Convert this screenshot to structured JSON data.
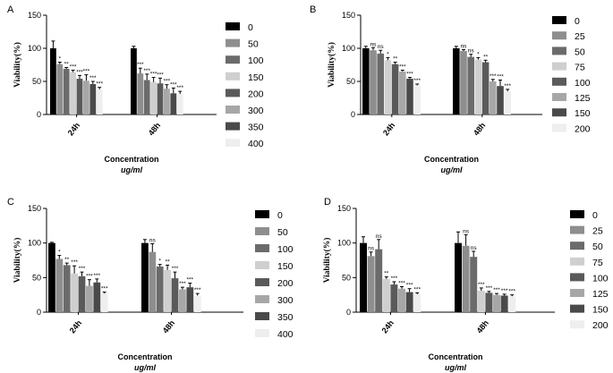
{
  "chart_data": [
    {
      "panel": "A",
      "type": "bar",
      "ylabel": "Viability(%)",
      "xlabel": "Concentration",
      "xunit": "ug/ml",
      "ylim": [
        0,
        150
      ],
      "yticks": [
        "0",
        "50",
        "100",
        "150"
      ],
      "categories": [
        "24h",
        "48h"
      ],
      "series": [
        {
          "name": "0",
          "color": "#000000",
          "values": [
            100,
            100
          ],
          "errors": [
            11,
            3
          ],
          "sig": [
            "",
            ""
          ]
        },
        {
          "name": "50",
          "color": "#8e8e8e",
          "values": [
            76,
            62
          ],
          "errors": [
            3,
            8
          ],
          "sig": [
            "*",
            "***"
          ]
        },
        {
          "name": "100",
          "color": "#6b6b6b",
          "values": [
            69,
            52
          ],
          "errors": [
            2,
            9
          ],
          "sig": [
            "**",
            "***"
          ]
        },
        {
          "name": "150",
          "color": "#cfcfcf",
          "values": [
            64,
            49
          ],
          "errors": [
            3,
            7
          ],
          "sig": [
            "***",
            "***"
          ]
        },
        {
          "name": "200",
          "color": "#5a5a5a",
          "values": [
            54,
            47
          ],
          "errors": [
            5,
            8
          ],
          "sig": [
            "***",
            "***"
          ]
        },
        {
          "name": "300",
          "color": "#a7a7a7",
          "values": [
            51,
            39
          ],
          "errors": [
            9,
            6
          ],
          "sig": [
            "***",
            "***"
          ]
        },
        {
          "name": "350",
          "color": "#4a4a4a",
          "values": [
            46,
            32
          ],
          "errors": [
            4,
            8
          ],
          "sig": [
            "***",
            "***"
          ]
        },
        {
          "name": "400",
          "color": "#eeeeee",
          "values": [
            38,
            31
          ],
          "errors": [
            3,
            4
          ],
          "sig": [
            "***",
            "***"
          ]
        }
      ]
    },
    {
      "panel": "B",
      "type": "bar",
      "ylabel": "Viability(%)",
      "xlabel": "Concentration",
      "xunit": "ug/ml",
      "ylim": [
        0,
        150
      ],
      "yticks": [
        "0",
        "50",
        "100",
        "150"
      ],
      "categories": [
        "24h",
        "48h"
      ],
      "series": [
        {
          "name": "0",
          "color": "#000000",
          "values": [
            100,
            100
          ],
          "errors": [
            3,
            3
          ],
          "sig": [
            "",
            ""
          ]
        },
        {
          "name": "25",
          "color": "#8e8e8e",
          "values": [
            97,
            96
          ],
          "errors": [
            4,
            2
          ],
          "sig": [
            "ns",
            "ns"
          ]
        },
        {
          "name": "50",
          "color": "#6b6b6b",
          "values": [
            92,
            87
          ],
          "errors": [
            5,
            4
          ],
          "sig": [
            "ns",
            "ns"
          ]
        },
        {
          "name": "75",
          "color": "#cfcfcf",
          "values": [
            82,
            83
          ],
          "errors": [
            4,
            3
          ],
          "sig": [
            "*",
            "*"
          ]
        },
        {
          "name": "100",
          "color": "#5a5a5a",
          "values": [
            76,
            79
          ],
          "errors": [
            3,
            3
          ],
          "sig": [
            "**",
            "**"
          ]
        },
        {
          "name": "125",
          "color": "#a7a7a7",
          "values": [
            65,
            50
          ],
          "errors": [
            2,
            3
          ],
          "sig": [
            "***",
            "***"
          ]
        },
        {
          "name": "150",
          "color": "#4a4a4a",
          "values": [
            54,
            43
          ],
          "errors": [
            2,
            9
          ],
          "sig": [
            "***",
            "***"
          ]
        },
        {
          "name": "200",
          "color": "#eeeeee",
          "values": [
            44,
            35
          ],
          "errors": [
            2,
            3
          ],
          "sig": [
            "***",
            "***"
          ]
        }
      ]
    },
    {
      "panel": "C",
      "type": "bar",
      "ylabel": "Viability(%)",
      "xlabel": "Concentration",
      "xunit": "ug/ml",
      "ylim": [
        0,
        150
      ],
      "yticks": [
        "0",
        "50",
        "100",
        "150"
      ],
      "categories": [
        "24h",
        "48h"
      ],
      "series": [
        {
          "name": "0",
          "color": "#000000",
          "values": [
            100,
            100
          ],
          "errors": [
            1,
            5
          ],
          "sig": [
            "",
            ""
          ]
        },
        {
          "name": "50",
          "color": "#8e8e8e",
          "values": [
            77,
            87
          ],
          "errors": [
            5,
            12
          ],
          "sig": [
            "*",
            "ns"
          ]
        },
        {
          "name": "100",
          "color": "#6b6b6b",
          "values": [
            68,
            66
          ],
          "errors": [
            3,
            3
          ],
          "sig": [
            "**",
            "*"
          ]
        },
        {
          "name": "150",
          "color": "#cfcfcf",
          "values": [
            56,
            61
          ],
          "errors": [
            11,
            7
          ],
          "sig": [
            "***",
            "**"
          ]
        },
        {
          "name": "200",
          "color": "#5a5a5a",
          "values": [
            52,
            49
          ],
          "errors": [
            6,
            9
          ],
          "sig": [
            "***",
            "***"
          ]
        },
        {
          "name": "300",
          "color": "#a7a7a7",
          "values": [
            38,
            33
          ],
          "errors": [
            9,
            3
          ],
          "sig": [
            "***",
            "***"
          ]
        },
        {
          "name": "350",
          "color": "#4a4a4a",
          "values": [
            43,
            36
          ],
          "errors": [
            5,
            6
          ],
          "sig": [
            "***",
            "***"
          ]
        },
        {
          "name": "400",
          "color": "#eeeeee",
          "values": [
            27,
            24
          ],
          "errors": [
            2,
            3
          ],
          "sig": [
            "***",
            "***"
          ]
        }
      ]
    },
    {
      "panel": "D",
      "type": "bar",
      "ylabel": "Viability(%)",
      "xlabel": "Concentration",
      "xunit": "ug/ml",
      "ylim": [
        0,
        150
      ],
      "yticks": [
        "0",
        "50",
        "100",
        "150"
      ],
      "categories": [
        "24h",
        "48h"
      ],
      "series": [
        {
          "name": "0",
          "color": "#000000",
          "values": [
            100,
            100
          ],
          "errors": [
            9,
            16
          ],
          "sig": [
            "",
            ""
          ]
        },
        {
          "name": "25",
          "color": "#8e8e8e",
          "values": [
            81,
            96
          ],
          "errors": [
            6,
            16
          ],
          "sig": [
            "ns",
            "ns"
          ]
        },
        {
          "name": "50",
          "color": "#6b6b6b",
          "values": [
            91,
            80
          ],
          "errors": [
            14,
            8
          ],
          "sig": [
            "ns",
            "ns"
          ]
        },
        {
          "name": "75",
          "color": "#cfcfcf",
          "values": [
            48,
            31
          ],
          "errors": [
            3,
            4
          ],
          "sig": [
            "**",
            "***"
          ]
        },
        {
          "name": "100",
          "color": "#5a5a5a",
          "values": [
            40,
            28
          ],
          "errors": [
            4,
            2
          ],
          "sig": [
            "***",
            "***"
          ]
        },
        {
          "name": "125",
          "color": "#a7a7a7",
          "values": [
            34,
            25
          ],
          "errors": [
            3,
            2
          ],
          "sig": [
            "***",
            "***"
          ]
        },
        {
          "name": "150",
          "color": "#4a4a4a",
          "values": [
            29,
            24
          ],
          "errors": [
            5,
            2
          ],
          "sig": [
            "***",
            "***"
          ]
        },
        {
          "name": "200",
          "color": "#eeeeee",
          "values": [
            26,
            23
          ],
          "errors": [
            2,
            2
          ],
          "sig": [
            "***",
            "***"
          ]
        }
      ]
    }
  ]
}
